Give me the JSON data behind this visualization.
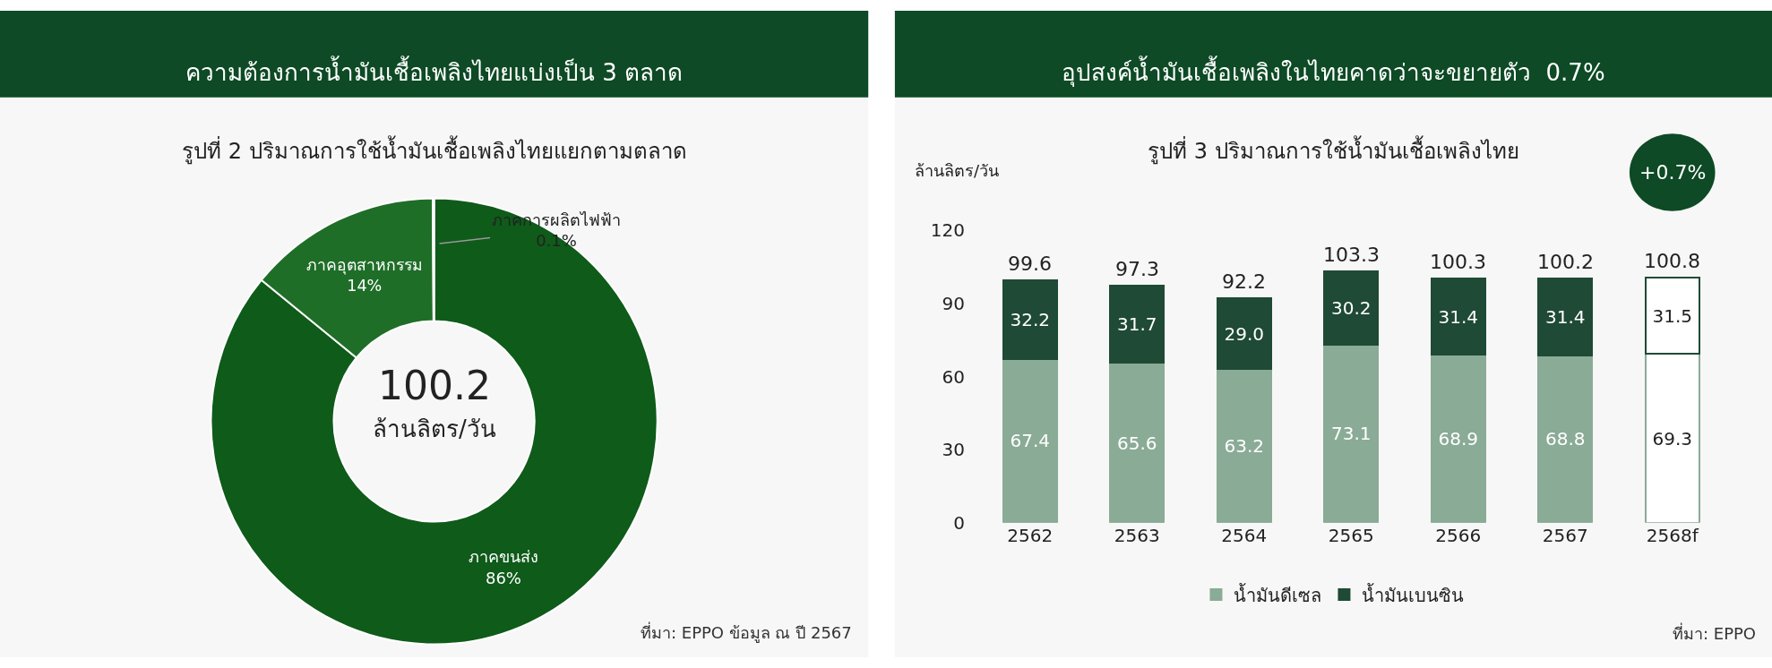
{
  "chart_data": [
    {
      "type": "donut",
      "title": "ความต้องการน้ำมันเชื้อเพลิงไทยแบ่งเป็น 3 ตลาด",
      "subtitle": "รูปที่ 2 ปริมาณการใช้น้ำมันเชื้อเพลิงไทยแยกตามตลาด",
      "categories": [
        "ภาคขนส่ง",
        "ภาคอุตสาหกรรม",
        "ภาคการผลิตไฟฟ้า"
      ],
      "values": [
        86,
        14,
        0.1
      ],
      "value_labels": [
        "86%",
        "14%",
        "0.1%"
      ],
      "colors": [
        "#0f5b1a",
        "#1f6e28",
        "#7a1030"
      ],
      "annotations": [
        "100.2",
        "ล้านลิตร/วัน",
        "ที่มา: EPPO ข้อมูล ณ ปี 2567"
      ],
      "legend": false
    },
    {
      "type": "bar",
      "title": "อุปสงค์น้ำมันเชื้อเพลิงในไทยคาดว่าจะขยายตัว  0.7%",
      "subtitle": "รูปที่ 3 ปริมาณการใช้น้ำมันเชื้อเพลิงไทย",
      "ylabel": "ล้านลิตร/วัน",
      "categories": [
        "2562",
        "2563",
        "2564",
        "2565",
        "2566",
        "2567",
        "2568f"
      ],
      "stacked": true,
      "series": [
        {
          "name": "น้ำมันดีเซล",
          "color": "#8aab96",
          "colors": [
            "#8aab96",
            "#8aab96",
            "#8aab96",
            "#8aab96",
            "#8aab96",
            "#8aab96",
            "#ffffff"
          ],
          "values": [
            67.4,
            65.6,
            63.2,
            73.1,
            68.9,
            68.8,
            69.3
          ],
          "value_labels": [
            "67.4",
            "65.6",
            "63.2",
            "73.1",
            "68.9",
            "68.8",
            "69.3"
          ]
        },
        {
          "name": "น้ำมันเบนซิน",
          "color": "#1f4a35",
          "colors": [
            "#1f4a35",
            "#1f4a35",
            "#1f4a35",
            "#1f4a35",
            "#1f4a35",
            "#1f4a35",
            "#ffffff"
          ],
          "values": [
            32.2,
            31.7,
            29.0,
            30.2,
            31.4,
            31.4,
            31.5
          ],
          "value_labels": [
            "32.2",
            "31.7",
            "29.0",
            "30.2",
            "31.4",
            "31.4",
            "31.5"
          ]
        }
      ],
      "data_labels": true,
      "totals": [
        "99.6",
        "97.3",
        "92.2",
        "103.3",
        "100.3",
        "100.2",
        "100.8"
      ],
      "ylim": [
        0,
        120
      ],
      "yticks": [
        0,
        30,
        60,
        90,
        120
      ],
      "grid": false,
      "legend": "bottom",
      "annotations": [
        "+0.7%",
        "ที่มา: EPPO"
      ]
    }
  ]
}
